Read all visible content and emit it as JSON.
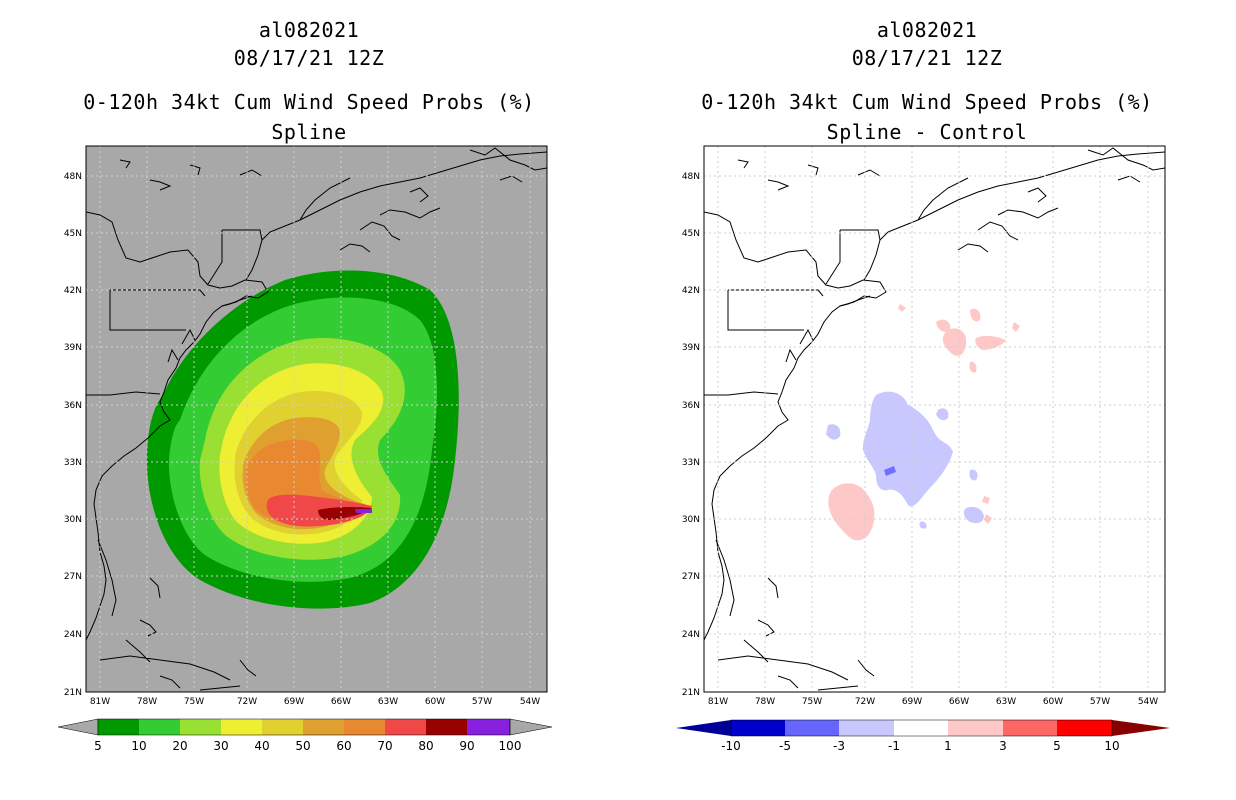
{
  "colors": {
    "land": "#a8a8a8",
    "coast": "#000000",
    "grid": "#cfcfcf",
    "neg_light": "#c8c8ff",
    "neg_mid": "#7070ff",
    "pos_light": "#ffc8c8"
  },
  "left_panel": {
    "storm_id": "al082021",
    "datetime": "08/17/21 12Z",
    "product": "0-120h 34kt Cum Wind Speed Probs (%)",
    "subtitle": "Spline",
    "lat_labels": [
      "48N",
      "45N",
      "42N",
      "39N",
      "36N",
      "33N",
      "30N",
      "27N",
      "24N",
      "21N"
    ],
    "lon_labels": [
      "81W",
      "78W",
      "75W",
      "72W",
      "69W",
      "66W",
      "63W",
      "60W",
      "57W",
      "54W"
    ],
    "colorbar": {
      "labels": [
        "5",
        "10",
        "20",
        "30",
        "40",
        "50",
        "60",
        "70",
        "80",
        "90",
        "100"
      ],
      "colors": [
        "#009900",
        "#33cc33",
        "#99e033",
        "#eeee33",
        "#e0d030",
        "#e0a030",
        "#e88830",
        "#f04848",
        "#990000",
        "#8820e0"
      ]
    }
  },
  "right_panel": {
    "storm_id": "al082021",
    "datetime": "08/17/21 12Z",
    "product": "0-120h 34kt Cum Wind Speed Probs (%)",
    "subtitle": "Spline - Control",
    "lat_labels": [
      "48N",
      "45N",
      "42N",
      "39N",
      "36N",
      "33N",
      "30N",
      "27N",
      "24N",
      "21N"
    ],
    "lon_labels": [
      "81W",
      "78W",
      "75W",
      "72W",
      "69W",
      "66W",
      "63W",
      "60W",
      "57W",
      "54W"
    ],
    "colorbar": {
      "labels": [
        "-10",
        "-5",
        "-3",
        "-1",
        "1",
        "3",
        "5",
        "10"
      ],
      "colors": [
        "#0000cc",
        "#6666ff",
        "#c8c8ff",
        "#ffffff",
        "#ffc8c8",
        "#ff6666",
        "#ff0000"
      ],
      "low_end_color": "#000099",
      "high_end_color": "#880000"
    }
  }
}
